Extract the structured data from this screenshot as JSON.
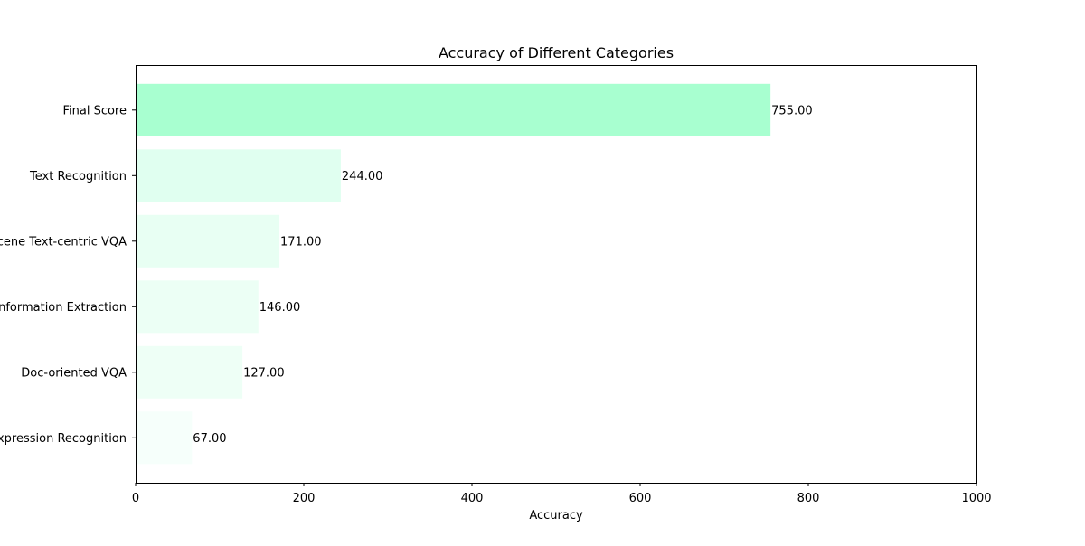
{
  "chart_data": {
    "type": "bar",
    "orientation": "horizontal",
    "title": "Accuracy of Different Categories",
    "xlabel": "Accuracy",
    "ylabel": "",
    "xlim": [
      0,
      1000
    ],
    "xticks": [
      0,
      200,
      400,
      600,
      800,
      1000
    ],
    "grid": false,
    "categories": [
      "Final Score",
      "Text Recognition",
      "Scene Text-centric VQA",
      "Key Information Extraction",
      "Doc-oriented VQA",
      "Handwritten Mathematical Expression Recognition"
    ],
    "values": [
      755,
      244,
      171,
      146,
      127,
      67
    ],
    "data_labels": [
      "755.00",
      "244.00",
      "171.00",
      "146.00",
      "127.00",
      "67.00"
    ],
    "bar_colors": [
      "#a8ffd0",
      "#e0fff0",
      "#e8fff3",
      "#ecfff5",
      "#eefff6",
      "#f6fffb"
    ]
  }
}
